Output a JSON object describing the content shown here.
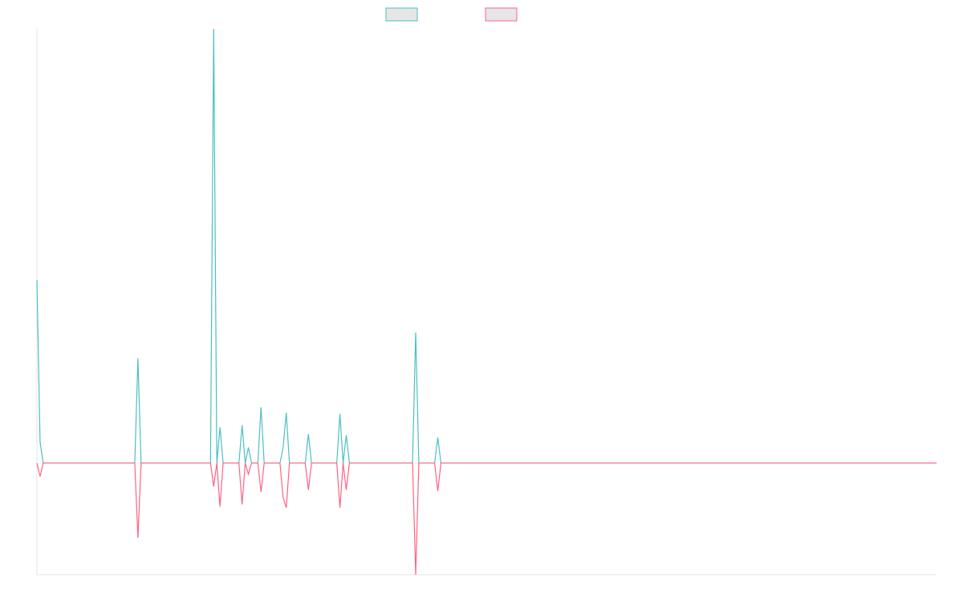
{
  "chart_data": {
    "type": "line",
    "x": [
      0,
      1,
      2,
      31,
      32,
      33,
      55,
      56,
      57,
      58,
      59,
      64,
      65,
      66,
      67,
      68,
      70,
      71,
      72,
      77,
      78,
      79,
      80,
      85,
      86,
      87,
      95,
      96,
      97,
      98,
      99,
      119,
      120,
      121,
      126,
      127,
      128,
      285
    ],
    "series": [
      {
        "color": "#4bc0c0",
        "values": [
          1.64,
          0.19,
          0,
          0,
          0.94,
          0,
          0,
          3.89,
          0,
          0.32,
          0,
          0,
          0.34,
          0,
          0.14,
          0,
          0,
          0.5,
          0,
          0,
          0.14,
          0.45,
          0,
          0,
          0.26,
          0,
          0,
          0.44,
          0,
          0.25,
          0,
          0,
          1.17,
          0,
          0,
          0.23,
          0,
          0
        ]
      },
      {
        "color": "#ff6384",
        "values": [
          0,
          -0.12,
          0,
          0,
          -0.67,
          0,
          0,
          -0.21,
          0,
          -0.39,
          0,
          0,
          -0.37,
          0,
          -0.1,
          0,
          0,
          -0.26,
          0,
          0,
          -0.31,
          -0.4,
          0,
          0,
          -0.24,
          0,
          0,
          -0.4,
          0,
          -0.24,
          0,
          0,
          -1,
          0,
          0,
          -0.25,
          0,
          0
        ]
      }
    ],
    "xlim": [
      0,
      285
    ],
    "ylim": [
      -1,
      3.89
    ]
  }
}
